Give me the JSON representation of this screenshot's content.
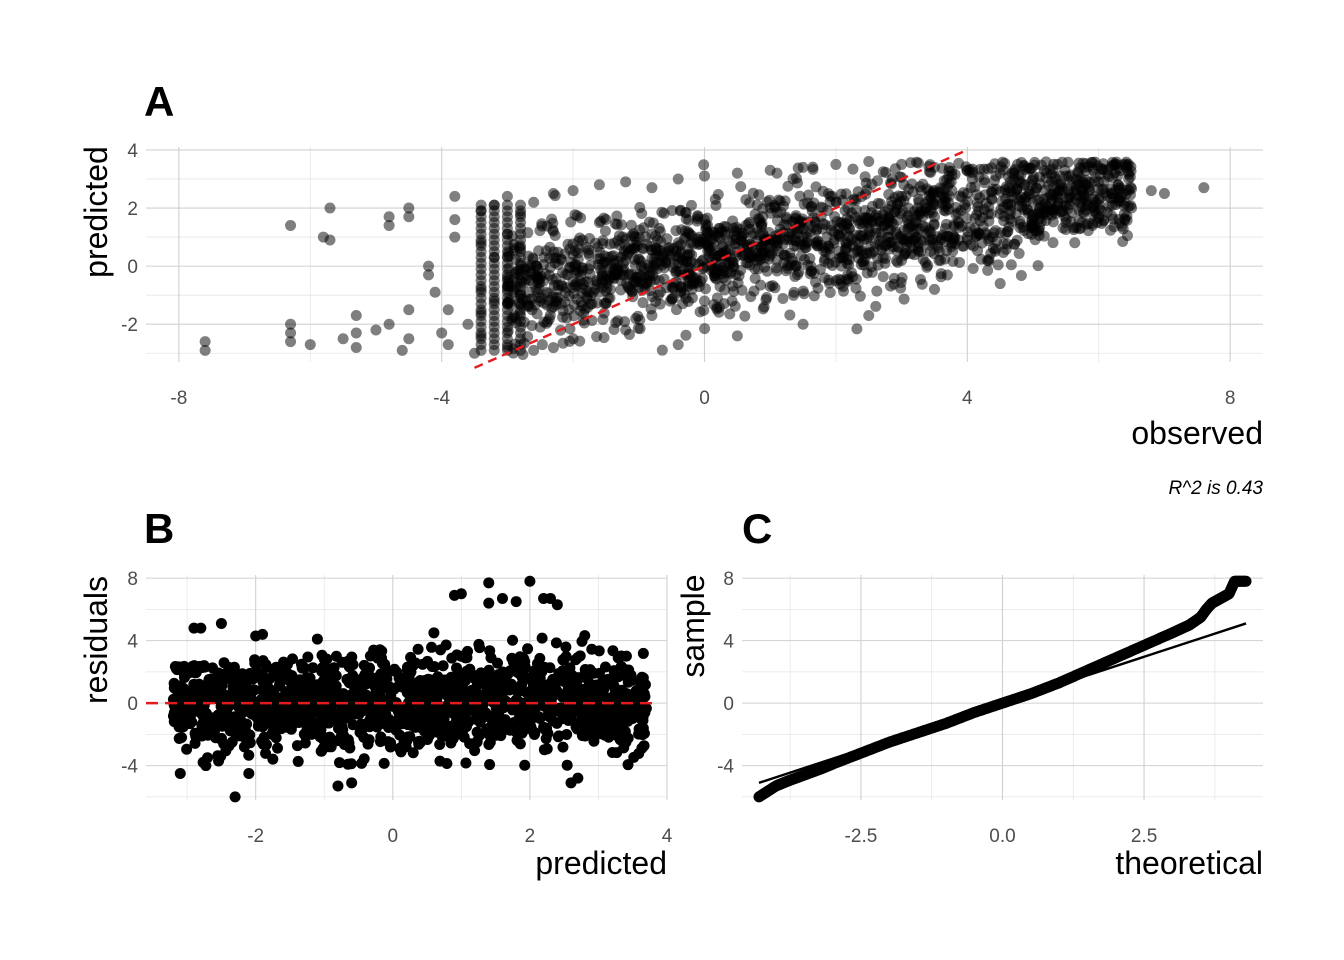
{
  "chart_data": [
    {
      "panel": "A",
      "type": "scatter",
      "xlabel": "observed",
      "ylabel": "predicted",
      "xlim": [
        -8.5,
        8.5
      ],
      "ylim": [
        -3.3,
        4.1
      ],
      "xticks": [
        "-8",
        "-4",
        "0",
        "4",
        "8"
      ],
      "xtick_values": [
        -8,
        -4,
        0,
        4,
        8
      ],
      "yticks": [
        "-2",
        "0",
        "2",
        "4"
      ],
      "ytick_values": [
        -2,
        0,
        2,
        4
      ],
      "grid": true,
      "point_color": "#000000",
      "point_opacity": 0.5,
      "reference_line": {
        "style": "dashed",
        "color": "#e41a1c",
        "intercept": 0,
        "slope": 1
      },
      "caption": "R^2 is 0.43",
      "points": [
        [
          -7.6,
          -2.6
        ],
        [
          -7.6,
          -2.9
        ],
        [
          -6.3,
          1.4
        ],
        [
          -6.3,
          -2.0
        ],
        [
          -6.3,
          -2.3
        ],
        [
          -6.3,
          -2.6
        ],
        [
          -6.0,
          -2.7
        ],
        [
          -5.8,
          1.0
        ],
        [
          -5.7,
          0.9
        ],
        [
          -5.7,
          2.0
        ],
        [
          -5.5,
          -2.5
        ],
        [
          -5.3,
          -1.7
        ],
        [
          -5.3,
          -2.3
        ],
        [
          -5.3,
          -2.8
        ],
        [
          -5.0,
          -2.2
        ],
        [
          -4.8,
          -2.0
        ],
        [
          -4.6,
          -2.9
        ],
        [
          -4.5,
          1.7
        ],
        [
          -4.5,
          2.0
        ],
        [
          -4.5,
          -1.5
        ],
        [
          -4.5,
          -2.5
        ],
        [
          -4.8,
          1.4
        ],
        [
          -4.8,
          1.7
        ],
        [
          -4.2,
          0.0
        ],
        [
          -4.2,
          -0.3
        ],
        [
          -4.1,
          -0.9
        ],
        [
          -4.0,
          -2.3
        ],
        [
          -3.9,
          -1.5
        ],
        [
          -3.9,
          -2.7
        ],
        [
          -3.8,
          1.6
        ],
        [
          -3.8,
          1.0
        ],
        [
          -3.8,
          2.4
        ],
        [
          -3.6,
          -2.0
        ],
        [
          -3.5,
          -3.0
        ],
        [
          -3.4,
          1.9
        ],
        [
          -3.4,
          0.8
        ],
        [
          -3.4,
          -0.8
        ],
        [
          -3.4,
          -1.6
        ],
        [
          -3.4,
          -2.4
        ],
        [
          -3.2,
          2.1
        ],
        [
          -3.2,
          0.3
        ],
        [
          -3.2,
          -1.2
        ],
        [
          -3.0,
          2.4
        ],
        [
          -3.0,
          1.1
        ],
        [
          -3.0,
          -0.4
        ],
        [
          -3.0,
          -2.8
        ],
        [
          -2.8,
          1.8
        ],
        [
          -2.8,
          0.6
        ],
        [
          -2.8,
          -1.0
        ],
        [
          -2.6,
          2.2
        ],
        [
          -2.6,
          -0.6
        ],
        [
          -2.6,
          -2.9
        ],
        [
          -2.3,
          2.5
        ],
        [
          -2.3,
          1.2
        ],
        [
          -2.3,
          -1.4
        ],
        [
          -2.0,
          2.6
        ],
        [
          -2.0,
          0.4
        ],
        [
          -2.0,
          -2.5
        ],
        [
          -1.6,
          2.8
        ],
        [
          -1.6,
          1.5
        ],
        [
          -1.6,
          -0.9
        ],
        [
          -1.2,
          2.9
        ],
        [
          -1.2,
          0.2
        ],
        [
          -1.2,
          -2.2
        ],
        [
          -0.8,
          2.7
        ],
        [
          -0.8,
          1.1
        ],
        [
          -0.8,
          -1.7
        ],
        [
          -0.4,
          3.0
        ],
        [
          -0.4,
          0.8
        ],
        [
          -0.4,
          -2.7
        ],
        [
          0.0,
          3.1
        ],
        [
          0.0,
          1.6
        ],
        [
          0.0,
          -1.2
        ],
        [
          0.5,
          3.2
        ],
        [
          0.5,
          0.5
        ],
        [
          0.5,
          -2.4
        ],
        [
          1.0,
          3.3
        ],
        [
          1.0,
          2.0
        ],
        [
          1.0,
          -0.7
        ],
        [
          1.5,
          3.4
        ],
        [
          1.5,
          1.0
        ],
        [
          1.5,
          -2.0
        ],
        [
          2.0,
          3.5
        ],
        [
          2.0,
          2.2
        ],
        [
          2.0,
          -0.5
        ],
        [
          2.5,
          3.6
        ],
        [
          2.5,
          1.3
        ],
        [
          2.5,
          -1.7
        ],
        [
          3.0,
          3.5
        ],
        [
          3.0,
          2.4
        ],
        [
          3.0,
          0.2
        ],
        [
          3.5,
          3.4
        ],
        [
          3.5,
          1.7
        ],
        [
          3.5,
          -0.8
        ],
        [
          4.0,
          3.3
        ],
        [
          4.0,
          2.5
        ],
        [
          4.0,
          0.9
        ],
        [
          4.5,
          3.2
        ],
        [
          4.5,
          1.8
        ],
        [
          4.5,
          -0.6
        ],
        [
          5.0,
          3.0
        ],
        [
          5.0,
          2.2
        ],
        [
          5.0,
          1.3
        ],
        [
          5.5,
          3.1
        ],
        [
          5.5,
          2.1
        ],
        [
          5.5,
          1.5
        ],
        [
          6.0,
          2.9
        ],
        [
          6.0,
          2.3
        ],
        [
          6.2,
          2.5
        ],
        [
          6.5,
          2.0
        ],
        [
          6.8,
          2.6
        ],
        [
          7.0,
          2.5
        ],
        [
          7.6,
          2.7
        ]
      ]
    },
    {
      "panel": "B",
      "type": "scatter",
      "xlabel": "predicted",
      "ylabel": "residuals",
      "xlim": [
        -3.6,
        4.0
      ],
      "ylim": [
        -6.2,
        8.2
      ],
      "xticks": [
        "-2",
        "0",
        "2",
        "4"
      ],
      "xtick_values": [
        -2,
        0,
        2,
        4
      ],
      "yticks": [
        "-4",
        "0",
        "4",
        "8"
      ],
      "ytick_values": [
        -4,
        0,
        4,
        8
      ],
      "grid": true,
      "point_color": "#000000",
      "reference_line": {
        "style": "dashed",
        "color": "#e41a1c",
        "intercept": 0,
        "slope": 0
      },
      "points": [
        [
          -3.1,
          -4.5
        ],
        [
          -2.9,
          4.8
        ],
        [
          -2.8,
          4.8
        ],
        [
          -2.5,
          5.1
        ],
        [
          -2.3,
          -6.0
        ],
        [
          -2.1,
          -4.5
        ],
        [
          -2.0,
          4.3
        ],
        [
          -1.9,
          4.4
        ],
        [
          -1.7,
          2.3
        ],
        [
          -1.1,
          4.1
        ],
        [
          -0.8,
          -5.3
        ],
        [
          -0.6,
          -5.1
        ],
        [
          0.6,
          4.5
        ],
        [
          0.9,
          6.9
        ],
        [
          1.0,
          7.0
        ],
        [
          1.4,
          7.7
        ],
        [
          1.4,
          6.4
        ],
        [
          1.6,
          6.7
        ],
        [
          1.8,
          6.5
        ],
        [
          2.0,
          7.8
        ],
        [
          2.2,
          6.7
        ],
        [
          2.3,
          6.7
        ],
        [
          2.4,
          6.3
        ],
        [
          2.6,
          -5.1
        ],
        [
          2.7,
          -4.8
        ],
        [
          3.4,
          -2.5
        ],
        [
          3.6,
          -0.4
        ]
      ]
    },
    {
      "panel": "C",
      "type": "line",
      "xlabel": "theoretical",
      "ylabel": "sample",
      "xlim": [
        -4.6,
        4.6
      ],
      "ylim": [
        -6.2,
        8.2
      ],
      "xticks": [
        "-2.5",
        "0.0",
        "2.5"
      ],
      "xtick_values": [
        -2.5,
        0,
        2.5
      ],
      "yticks": [
        "-4",
        "0",
        "4",
        "8"
      ],
      "ytick_values": [
        -4,
        0,
        4,
        8
      ],
      "grid": true,
      "point_color": "#000000",
      "x": [
        -4.3,
        -4.0,
        -3.8,
        -3.5,
        -3.2,
        -3.0,
        -2.5,
        -2.0,
        -1.5,
        -1.0,
        -0.5,
        0.0,
        0.5,
        1.0,
        1.5,
        2.0,
        2.5,
        3.0,
        3.3,
        3.5,
        3.6,
        3.7,
        3.8,
        3.9,
        4.0,
        4.1,
        4.3
      ],
      "y": [
        -6.0,
        -5.3,
        -5.0,
        -4.6,
        -4.2,
        -3.9,
        -3.2,
        -2.5,
        -1.9,
        -1.3,
        -0.6,
        0.0,
        0.6,
        1.3,
        2.1,
        2.9,
        3.7,
        4.5,
        5.0,
        5.5,
        6.0,
        6.4,
        6.6,
        6.8,
        7.0,
        7.8,
        7.8
      ],
      "reference_line": {
        "style": "solid",
        "color": "#000000",
        "x": [
          -4.3,
          4.3
        ],
        "y": [
          -5.1,
          5.1
        ]
      }
    }
  ]
}
